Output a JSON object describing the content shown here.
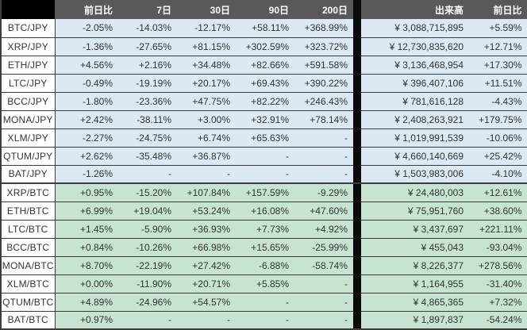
{
  "colors": {
    "header_bg": "#595959",
    "corner_bg": "#000000",
    "separator_bg": "#0a0a0a",
    "jpy_row_bg": "#dbe9f5",
    "btc_row_bg": "#c7e4d3",
    "pair_cell_bg": "#ffffff",
    "border": "#3c3c3c",
    "header_text": "#ffffff",
    "body_text": "#333333"
  },
  "chart_data": {
    "type": "table",
    "title": "",
    "columns": [
      "",
      "前日比",
      "7日",
      "30日",
      "90日",
      "200日",
      "出来高",
      "前日比"
    ],
    "sections": [
      "JPY",
      "BTC"
    ],
    "rows": [
      {
        "pair": "BTC/JPY",
        "quote": "JPY",
        "changes": [
          "-2.05%",
          "-14.03%",
          "-12.17%",
          "+58.11%",
          "+368.99%"
        ],
        "volume": "¥ 3,088,715,895",
        "volume_change": "+5.59%"
      },
      {
        "pair": "XRP/JPY",
        "quote": "JPY",
        "changes": [
          "-1.36%",
          "-27.65%",
          "+81.15%",
          "+302.59%",
          "+323.72%"
        ],
        "volume": "¥ 12,730,835,620",
        "volume_change": "+12.71%"
      },
      {
        "pair": "ETH/JPY",
        "quote": "JPY",
        "changes": [
          "+4.56%",
          "+2.16%",
          "+34.48%",
          "+82.66%",
          "+591.58%"
        ],
        "volume": "¥ 3,136,468,954",
        "volume_change": "+17.30%"
      },
      {
        "pair": "LTC/JPY",
        "quote": "JPY",
        "changes": [
          "-0.49%",
          "-19.19%",
          "+20.17%",
          "+69.43%",
          "+390.22%"
        ],
        "volume": "¥ 396,407,106",
        "volume_change": "+11.51%"
      },
      {
        "pair": "BCC/JPY",
        "quote": "JPY",
        "changes": [
          "-1.80%",
          "-23.36%",
          "+47.75%",
          "+82.22%",
          "+246.43%"
        ],
        "volume": "¥ 781,616,128",
        "volume_change": "-4.43%"
      },
      {
        "pair": "MONA/JPY",
        "quote": "JPY",
        "changes": [
          "+2.42%",
          "-38.11%",
          "+3.00%",
          "+32.91%",
          "+78.14%"
        ],
        "volume": "¥ 2,408,263,921",
        "volume_change": "+179.75%"
      },
      {
        "pair": "XLM/JPY",
        "quote": "JPY",
        "changes": [
          "-2.27%",
          "-24.75%",
          "+6.74%",
          "+65.63%",
          "-"
        ],
        "volume": "¥ 1,019,991,539",
        "volume_change": "-10.06%"
      },
      {
        "pair": "QTUM/JPY",
        "quote": "JPY",
        "changes": [
          "+2.62%",
          "-35.48%",
          "+36.87%",
          "-",
          "-"
        ],
        "volume": "¥ 4,660,140,669",
        "volume_change": "+25.42%"
      },
      {
        "pair": "BAT/JPY",
        "quote": "JPY",
        "changes": [
          "-1.26%",
          "-",
          "-",
          "-",
          "-"
        ],
        "volume": "¥ 1,503,983,006",
        "volume_change": "-4.10%"
      },
      {
        "pair": "XRP/BTC",
        "quote": "BTC",
        "changes": [
          "+0.95%",
          "-15.20%",
          "+107.84%",
          "+157.59%",
          "-9.29%"
        ],
        "volume": "¥ 24,480,003",
        "volume_change": "+12.61%"
      },
      {
        "pair": "ETH/BTC",
        "quote": "BTC",
        "changes": [
          "+6.99%",
          "+19.04%",
          "+53.24%",
          "+16.08%",
          "+47.60%"
        ],
        "volume": "¥ 75,951,760",
        "volume_change": "+38.60%"
      },
      {
        "pair": "LTC/BTC",
        "quote": "BTC",
        "changes": [
          "+1.45%",
          "-5.90%",
          "+36.93%",
          "+7.73%",
          "+4.92%"
        ],
        "volume": "¥ 3,437,697",
        "volume_change": "+221.11%"
      },
      {
        "pair": "BCC/BTC",
        "quote": "BTC",
        "changes": [
          "+0.84%",
          "-10.26%",
          "+66.98%",
          "+15.65%",
          "-25.99%"
        ],
        "volume": "¥ 455,043",
        "volume_change": "-93.04%"
      },
      {
        "pair": "MONA/BTC",
        "quote": "BTC",
        "changes": [
          "+8.70%",
          "-22.19%",
          "+27.42%",
          "-6.88%",
          "-58.74%"
        ],
        "volume": "¥ 8,226,377",
        "volume_change": "+278.56%"
      },
      {
        "pair": "XLM/BTC",
        "quote": "BTC",
        "changes": [
          "+0.00%",
          "-11.90%",
          "+20.71%",
          "+5.85%",
          "-"
        ],
        "volume": "¥ 1,164,955",
        "volume_change": "-31.40%"
      },
      {
        "pair": "QTUM/BTC",
        "quote": "BTC",
        "changes": [
          "+4.89%",
          "-24.96%",
          "+54.57%",
          "-",
          "-"
        ],
        "volume": "¥ 4,865,365",
        "volume_change": "+7.32%"
      },
      {
        "pair": "BAT/BTC",
        "quote": "BTC",
        "changes": [
          "+0.97%",
          "-",
          "-",
          "-",
          "-"
        ],
        "volume": "¥ 1,897,837",
        "volume_change": "-54.24%"
      }
    ]
  }
}
